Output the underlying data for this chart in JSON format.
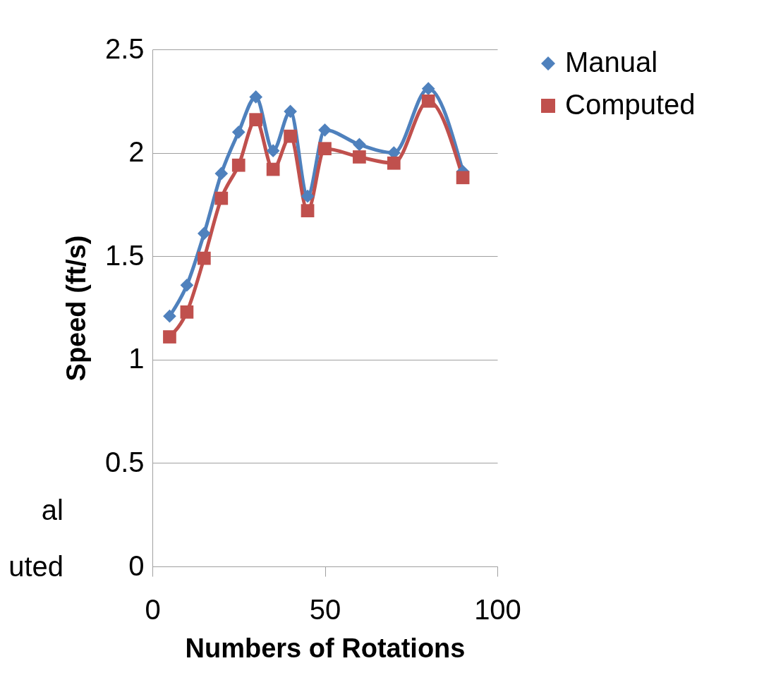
{
  "chart_data": {
    "type": "line",
    "xlabel": "Numbers of Rotations",
    "ylabel": "Speed (ft/s)",
    "xlim": [
      0,
      100
    ],
    "xticks": [
      0,
      50,
      100
    ],
    "ylim": [
      0,
      2.5
    ],
    "yticks": [
      0,
      0.5,
      1,
      1.5,
      2,
      2.5
    ],
    "x": [
      5,
      10,
      15,
      20,
      25,
      30,
      35,
      40,
      45,
      50,
      60,
      70,
      80,
      90
    ],
    "series": [
      {
        "name": "Manual",
        "color": "#4f81bd",
        "marker": "diamond",
        "values": [
          1.21,
          1.36,
          1.61,
          1.9,
          2.1,
          2.27,
          2.01,
          2.2,
          1.79,
          2.11,
          2.04,
          2.0,
          2.31,
          1.91
        ]
      },
      {
        "name": "Computed",
        "color": "#c0504d",
        "marker": "square",
        "values": [
          1.11,
          1.23,
          1.49,
          1.78,
          1.94,
          2.16,
          1.92,
          2.08,
          1.72,
          2.02,
          1.98,
          1.95,
          2.25,
          1.88
        ]
      }
    ],
    "grid": "y",
    "legend": "right",
    "line_style": "solid",
    "annotations": [
      "al",
      "uted"
    ]
  }
}
